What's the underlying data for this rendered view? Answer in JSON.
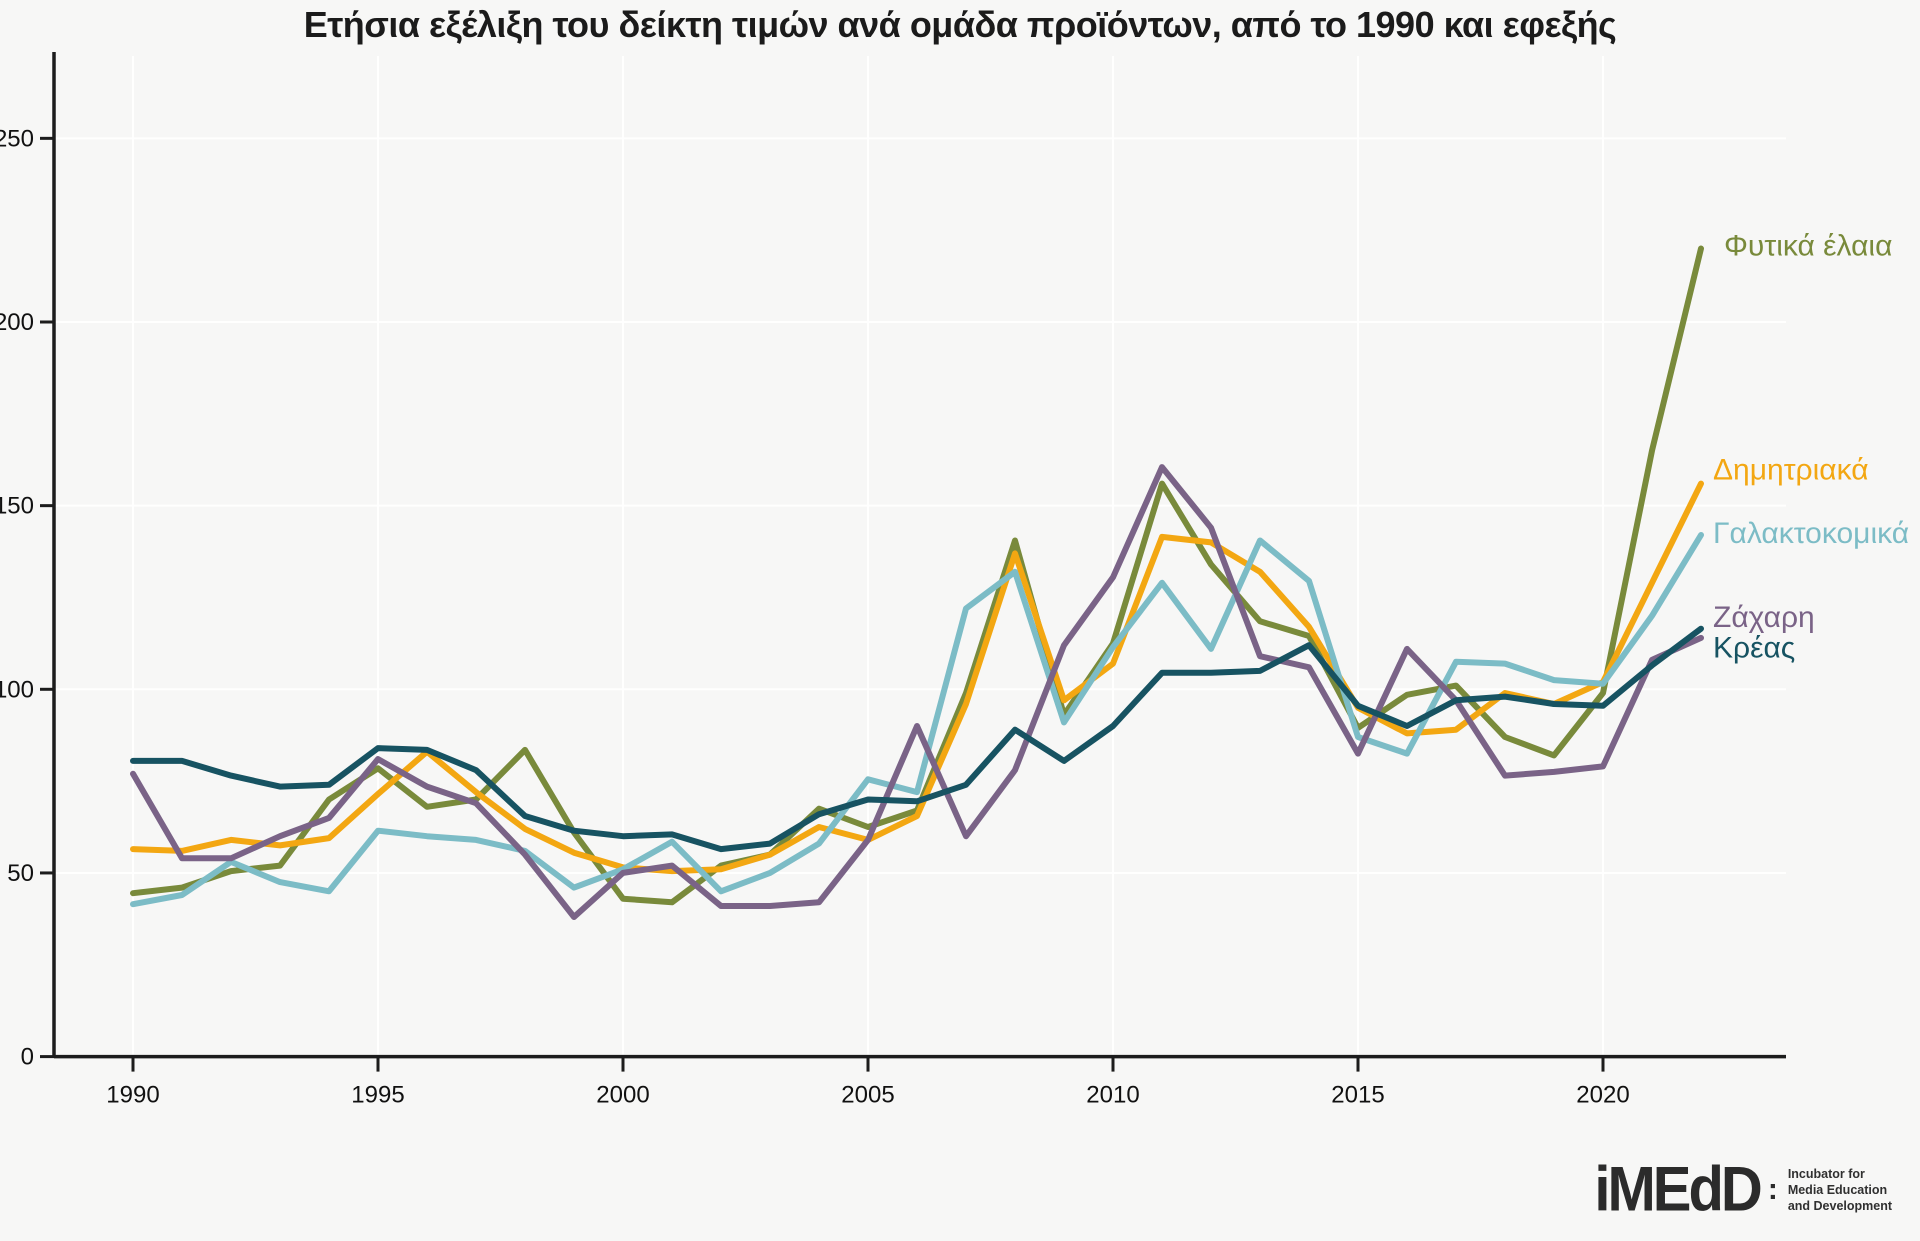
{
  "title": "Ετήσια εξέλιξη του δείκτη τιμών ανά ομάδα προϊόντων, από το 1990 και εφεξής",
  "chart_data": {
    "type": "line",
    "x": [
      1990,
      1991,
      1992,
      1993,
      1994,
      1995,
      1996,
      1997,
      1998,
      1999,
      2000,
      2001,
      2002,
      2003,
      2004,
      2005,
      2006,
      2007,
      2008,
      2009,
      2010,
      2011,
      2012,
      2013,
      2014,
      2015,
      2016,
      2017,
      2018,
      2019,
      2020,
      2021,
      2022
    ],
    "xticks": [
      1990,
      1995,
      2000,
      2005,
      2010,
      2015,
      2020
    ],
    "yticks": [
      0,
      50,
      100,
      150,
      200,
      250
    ],
    "ylim": [
      0,
      273
    ],
    "xlabel": "",
    "ylabel": "",
    "grid": "faint white gridlines at axis ticks, light gray background",
    "legend_position": "labels at right ends of lines, colored like the lines",
    "series": [
      {
        "name": "Φυτικά έλαια",
        "color": "#798a3b",
        "values": [
          44.5,
          46,
          50.5,
          52,
          70,
          78.5,
          68,
          70,
          83.5,
          61,
          43,
          42,
          52,
          55,
          67.5,
          62.5,
          67,
          99,
          140.5,
          93,
          112.5,
          156,
          134,
          118.5,
          114.5,
          89.5,
          98.5,
          101,
          87,
          82,
          99,
          165,
          220
        ]
      },
      {
        "name": "Δημητριακά",
        "color": "#f3a712",
        "values": [
          56.5,
          56,
          59,
          57.5,
          59.5,
          71.5,
          83,
          72,
          62,
          55.5,
          51.5,
          50.5,
          51,
          55,
          62.5,
          59,
          65.5,
          96,
          137,
          97,
          107,
          141.5,
          140,
          132,
          117,
          95,
          88,
          89,
          99,
          96,
          102,
          129,
          156
        ]
      },
      {
        "name": "Γαλακτοκομικά",
        "color": "#7cbcc6",
        "values": [
          41.5,
          44,
          53,
          47.5,
          45,
          61.5,
          60,
          59,
          56,
          46,
          51,
          58.5,
          45,
          50,
          58,
          75.5,
          72,
          122,
          132,
          91,
          111.5,
          129,
          111,
          140.5,
          129.5,
          87,
          82.5,
          107.5,
          107,
          102.5,
          101.5,
          120,
          142
        ]
      },
      {
        "name": "Ζάχαρη",
        "color": "#7a6387",
        "values": [
          77,
          54,
          54,
          60,
          65,
          81,
          73.5,
          69,
          55,
          38,
          50,
          52,
          41,
          41,
          42,
          59,
          90,
          60,
          78,
          112,
          130.5,
          160.5,
          144,
          109,
          106,
          82.5,
          111,
          97,
          76.5,
          77.5,
          79,
          108,
          114
        ]
      },
      {
        "name": "Κρέας",
        "color": "#175362",
        "values": [
          80.5,
          80.5,
          76.5,
          73.5,
          74,
          84,
          83.5,
          78,
          65.5,
          61.5,
          60,
          60.5,
          56.5,
          58,
          66,
          70,
          69.5,
          74,
          89,
          80.5,
          90,
          104.5,
          104.5,
          105,
          112,
          95.5,
          90,
          97,
          98,
          96,
          95.5,
          106.5,
          116.5
        ]
      }
    ]
  },
  "logo": {
    "mark": "iMEdD",
    "colon": ":",
    "tagline_lines": [
      "Incubator for",
      "Media Education",
      "and Development"
    ]
  }
}
